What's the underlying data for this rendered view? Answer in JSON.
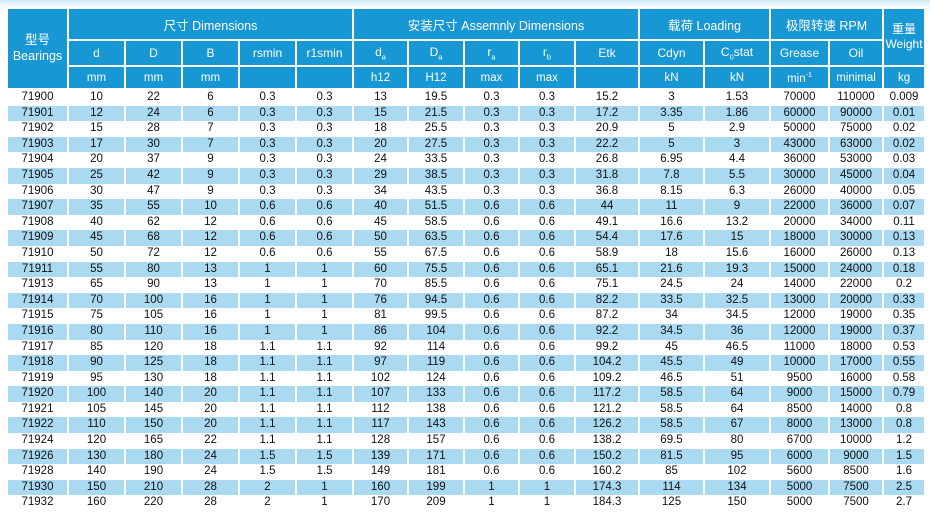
{
  "colors": {
    "header_blue": "#1897d5",
    "stripe_blue": "#a9daf2",
    "row_white": "#ffffff",
    "text_dark": "#111111",
    "page_top_tint": "#cfe9f7"
  },
  "table": {
    "model_header": {
      "zh": "型号",
      "en": "Bearings"
    },
    "groups": [
      {
        "label": "尺寸 Dimensions",
        "span": 5
      },
      {
        "label": "安装尺寸 Assemnly Dimensions",
        "span": 5
      },
      {
        "label": "载荷 Loading",
        "span": 2
      },
      {
        "label": "极限转速 RPM",
        "span": 2
      }
    ],
    "weight_header": {
      "zh": "重量",
      "en": "Weight",
      "unit": "kg"
    },
    "columns": [
      {
        "parts": [
          [
            "d",
            ""
          ]
        ],
        "unit": [
          [
            "mm",
            ""
          ]
        ]
      },
      {
        "parts": [
          [
            "D",
            ""
          ]
        ],
        "unit": [
          [
            "mm",
            ""
          ]
        ]
      },
      {
        "parts": [
          [
            "B",
            ""
          ]
        ],
        "unit": [
          [
            "mm",
            ""
          ]
        ]
      },
      {
        "parts": [
          [
            "rsmin",
            ""
          ]
        ],
        "unit": []
      },
      {
        "parts": [
          [
            "r1smin",
            ""
          ]
        ],
        "unit": []
      },
      {
        "parts": [
          [
            "d",
            ""
          ],
          [
            "a",
            "sub"
          ]
        ],
        "unit": [
          [
            "h12",
            ""
          ]
        ]
      },
      {
        "parts": [
          [
            "D",
            ""
          ],
          [
            "a",
            "sub"
          ]
        ],
        "unit": [
          [
            "H12",
            ""
          ]
        ]
      },
      {
        "parts": [
          [
            "r",
            ""
          ],
          [
            "a",
            "sub"
          ]
        ],
        "unit": [
          [
            "max",
            ""
          ]
        ]
      },
      {
        "parts": [
          [
            "r",
            ""
          ],
          [
            "b",
            "sub"
          ]
        ],
        "unit": [
          [
            "max",
            ""
          ]
        ]
      },
      {
        "parts": [
          [
            "Etk",
            ""
          ]
        ],
        "unit": []
      },
      {
        "parts": [
          [
            "Cdyn",
            ""
          ]
        ],
        "unit": [
          [
            "kN",
            ""
          ]
        ]
      },
      {
        "parts": [
          [
            "C",
            ""
          ],
          [
            "0",
            "sub"
          ],
          [
            "stat",
            ""
          ]
        ],
        "unit": [
          [
            "kN",
            ""
          ]
        ]
      },
      {
        "parts": [
          [
            "Grease",
            ""
          ]
        ],
        "unit": [
          [
            "min",
            ""
          ],
          [
            "-1",
            "sup"
          ]
        ]
      },
      {
        "parts": [
          [
            "Oil",
            ""
          ]
        ],
        "unit": [
          [
            "minimal",
            ""
          ]
        ]
      }
    ],
    "rows": [
      [
        "71900",
        "10",
        "22",
        "6",
        "0.3",
        "0.3",
        "13",
        "19.5",
        "0.3",
        "0.3",
        "15.2",
        "3",
        "1.53",
        "70000",
        "110000",
        "0.009"
      ],
      [
        "71901",
        "12",
        "24",
        "6",
        "0.3",
        "0.3",
        "15",
        "21.5",
        "0.3",
        "0.3",
        "17.2",
        "3.35",
        "1.86",
        "60000",
        "90000",
        "0.01"
      ],
      [
        "71902",
        "15",
        "28",
        "7",
        "0.3",
        "0.3",
        "18",
        "25.5",
        "0.3",
        "0.3",
        "20.9",
        "5",
        "2.9",
        "50000",
        "75000",
        "0.02"
      ],
      [
        "71903",
        "17",
        "30",
        "7",
        "0.3",
        "0.3",
        "20",
        "27.5",
        "0.3",
        "0.3",
        "22.2",
        "5",
        "3",
        "43000",
        "63000",
        "0.02"
      ],
      [
        "71904",
        "20",
        "37",
        "9",
        "0.3",
        "0.3",
        "24",
        "33.5",
        "0.3",
        "0.3",
        "26.8",
        "6.95",
        "4.4",
        "36000",
        "53000",
        "0.03"
      ],
      [
        "71905",
        "25",
        "42",
        "9",
        "0.3",
        "0.3",
        "29",
        "38.5",
        "0.3",
        "0.3",
        "31.8",
        "7.8",
        "5.5",
        "30000",
        "45000",
        "0.04"
      ],
      [
        "71906",
        "30",
        "47",
        "9",
        "0.3",
        "0.3",
        "34",
        "43.5",
        "0.3",
        "0.3",
        "36.8",
        "8.15",
        "6.3",
        "26000",
        "40000",
        "0.05"
      ],
      [
        "71907",
        "35",
        "55",
        "10",
        "0.6",
        "0.6",
        "40",
        "51.5",
        "0.6",
        "0.6",
        "44",
        "11",
        "9",
        "22000",
        "36000",
        "0.07"
      ],
      [
        "71908",
        "40",
        "62",
        "12",
        "0.6",
        "0.6",
        "45",
        "58.5",
        "0.6",
        "0.6",
        "49.1",
        "16.6",
        "13.2",
        "20000",
        "34000",
        "0.11"
      ],
      [
        "71909",
        "45",
        "68",
        "12",
        "0.6",
        "0.6",
        "50",
        "63.5",
        "0.6",
        "0.6",
        "54.4",
        "17.6",
        "15",
        "18000",
        "30000",
        "0.13"
      ],
      [
        "71910",
        "50",
        "72",
        "12",
        "0.6",
        "0.6",
        "55",
        "67.5",
        "0.6",
        "0.6",
        "58.9",
        "18",
        "15.6",
        "16000",
        "26000",
        "0.13"
      ],
      [
        "71911",
        "55",
        "80",
        "13",
        "1",
        "1",
        "60",
        "75.5",
        "0.6",
        "0.6",
        "65.1",
        "21.6",
        "19.3",
        "15000",
        "24000",
        "0.18"
      ],
      [
        "71913",
        "65",
        "90",
        "13",
        "1",
        "1",
        "70",
        "85.5",
        "0.6",
        "0.6",
        "75.1",
        "24.5",
        "24",
        "14000",
        "22000",
        "0.2"
      ],
      [
        "71914",
        "70",
        "100",
        "16",
        "1",
        "1",
        "76",
        "94.5",
        "0.6",
        "0.6",
        "82.2",
        "33.5",
        "32.5",
        "13000",
        "20000",
        "0.33"
      ],
      [
        "71915",
        "75",
        "105",
        "16",
        "1",
        "1",
        "81",
        "99.5",
        "0.6",
        "0.6",
        "87.2",
        "34",
        "34.5",
        "12000",
        "19000",
        "0.35"
      ],
      [
        "71916",
        "80",
        "110",
        "16",
        "1",
        "1",
        "86",
        "104",
        "0.6",
        "0.6",
        "92.2",
        "34.5",
        "36",
        "12000",
        "19000",
        "0.37"
      ],
      [
        "71917",
        "85",
        "120",
        "18",
        "1.1",
        "1.1",
        "92",
        "114",
        "0.6",
        "0.6",
        "99.2",
        "45",
        "46.5",
        "11000",
        "18000",
        "0.53"
      ],
      [
        "71918",
        "90",
        "125",
        "18",
        "1.1",
        "1.1",
        "97",
        "119",
        "0.6",
        "0.6",
        "104.2",
        "45.5",
        "49",
        "10000",
        "17000",
        "0.55"
      ],
      [
        "71919",
        "95",
        "130",
        "18",
        "1.1",
        "1.1",
        "102",
        "124",
        "0.6",
        "0.6",
        "109.2",
        "46.5",
        "51",
        "9500",
        "16000",
        "0.58"
      ],
      [
        "71920",
        "100",
        "140",
        "20",
        "1.1",
        "1.1",
        "107",
        "133",
        "0.6",
        "0.6",
        "117.2",
        "58.5",
        "64",
        "9000",
        "15000",
        "0.79"
      ],
      [
        "71921",
        "105",
        "145",
        "20",
        "1.1",
        "1.1",
        "112",
        "138",
        "0.6",
        "0.6",
        "121.2",
        "58.5",
        "64",
        "8500",
        "14000",
        "0.8"
      ],
      [
        "71922",
        "110",
        "150",
        "20",
        "1.1",
        "1.1",
        "117",
        "143",
        "0.6",
        "0.6",
        "126.2",
        "58.5",
        "67",
        "8000",
        "13000",
        "0.8"
      ],
      [
        "71924",
        "120",
        "165",
        "22",
        "1.1",
        "1.1",
        "128",
        "157",
        "0.6",
        "0.6",
        "138.2",
        "69.5",
        "80",
        "6700",
        "10000",
        "1.2"
      ],
      [
        "71926",
        "130",
        "180",
        "24",
        "1.5",
        "1.5",
        "139",
        "171",
        "0.6",
        "0.6",
        "150.2",
        "81.5",
        "95",
        "6000",
        "9000",
        "1.5"
      ],
      [
        "71928",
        "140",
        "190",
        "24",
        "1.5",
        "1.5",
        "149",
        "181",
        "0.6",
        "0.6",
        "160.2",
        "85",
        "102",
        "5600",
        "8500",
        "1.6"
      ],
      [
        "71930",
        "150",
        "210",
        "28",
        "2",
        "1",
        "160",
        "199",
        "1",
        "1",
        "174.3",
        "114",
        "134",
        "5000",
        "7500",
        "2.5"
      ],
      [
        "71932",
        "160",
        "220",
        "28",
        "2",
        "1",
        "170",
        "209",
        "1",
        "1",
        "184.3",
        "125",
        "150",
        "5000",
        "7500",
        "2.7"
      ]
    ]
  }
}
